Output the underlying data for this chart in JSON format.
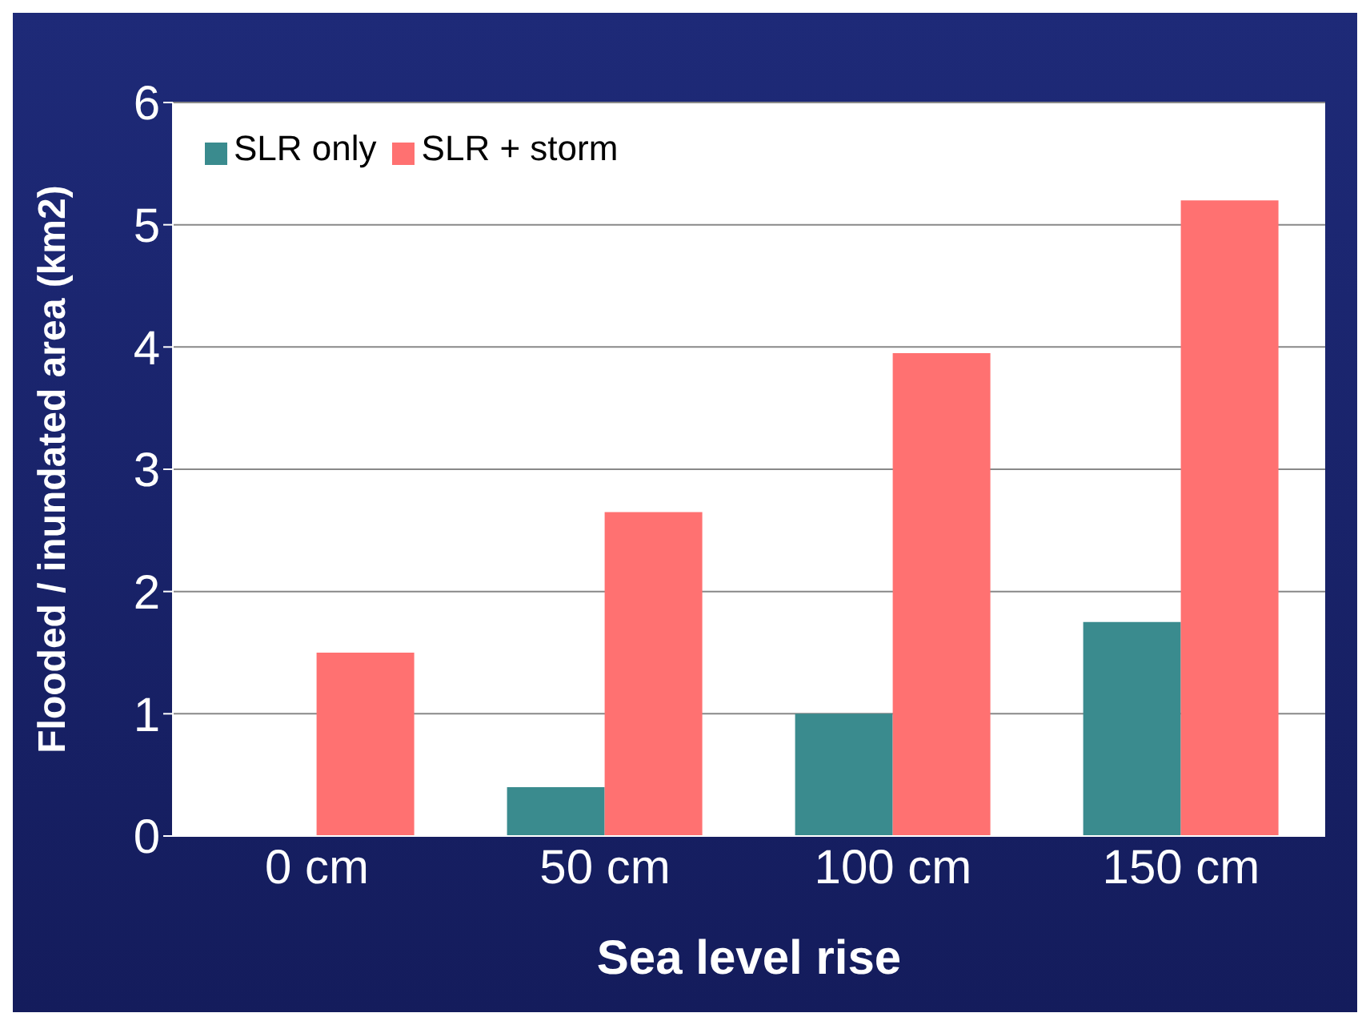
{
  "chart_data": {
    "type": "bar",
    "xlabel": "Sea level rise",
    "ylabel": "Flooded / inundated area (km2)",
    "categories": [
      "0 cm",
      "50 cm",
      "100 cm",
      "150 cm"
    ],
    "series": [
      {
        "name": "SLR only",
        "color": "#3a8b8e",
        "values": [
          0,
          0.4,
          1.0,
          1.75
        ]
      },
      {
        "name": "SLR + storm",
        "color": "#ff7171",
        "values": [
          1.5,
          2.65,
          3.95,
          5.2
        ]
      }
    ],
    "ylim": [
      0,
      6
    ],
    "yticks": [
      0,
      1,
      2,
      3,
      4,
      5,
      6
    ],
    "grid": "y",
    "legend": "top left"
  }
}
